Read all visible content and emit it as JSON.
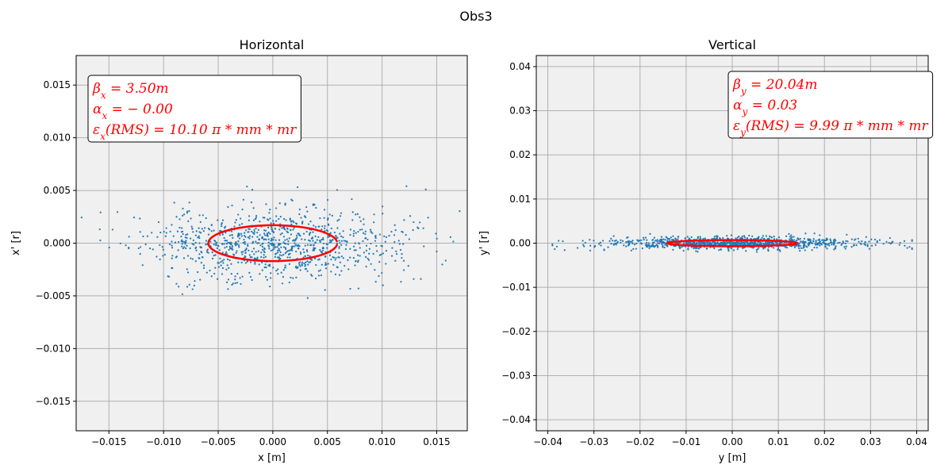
{
  "figure": {
    "suptitle": "Obs3"
  },
  "colors": {
    "points": "#1f77b4",
    "ellipse": "#ff0000",
    "axes_bg": "#f0f0f0",
    "grid": "#b0b0b0"
  },
  "chart_data": [
    {
      "type": "scatter",
      "title": "Horizontal",
      "xlabel": "x [m]",
      "ylabel": "x' [r]",
      "xlim": [
        -0.018,
        0.0178
      ],
      "ylim": [
        -0.0178,
        0.0178
      ],
      "xticks": [
        -0.015,
        -0.01,
        -0.005,
        0.0,
        0.005,
        0.01,
        0.015
      ],
      "xtick_labels": [
        "−0.015",
        "−0.010",
        "−0.005",
        "0.000",
        "0.005",
        "0.010",
        "0.015"
      ],
      "yticks": [
        -0.015,
        -0.01,
        -0.005,
        0.0,
        0.005,
        0.01,
        0.015
      ],
      "ytick_labels": [
        "−0.015",
        "−0.010",
        "−0.005",
        "0.000",
        "0.005",
        "0.010",
        "0.015"
      ],
      "grid": true,
      "particles": {
        "count": 1000,
        "sigma_pos": 0.0059,
        "sigma_angle": 0.0017,
        "pos_range": [
          -0.0175,
          0.0175
        ],
        "angle_range": [
          -0.0052,
          0.0054
        ],
        "seed": 11
      },
      "ellipse": {
        "beta": 3.5,
        "alpha": 0.0,
        "emittance": 1.01e-05,
        "x_range": [
          -0.0059,
          0.0059
        ],
        "y_range": [
          -0.0017,
          0.0017
        ]
      },
      "annotation": {
        "placement": "top-left",
        "lines": [
          "βx = 3.50m",
          "αx = − 0.00",
          "εx(RMS) = 10.10 π * mm * mr"
        ]
      }
    },
    {
      "type": "scatter",
      "title": "Vertical",
      "xlabel": "y [m]",
      "ylabel": "y' [r]",
      "xlim": [
        -0.0425,
        0.0425
      ],
      "ylim": [
        -0.0425,
        0.0425
      ],
      "xticks": [
        -0.04,
        -0.03,
        -0.02,
        -0.01,
        0.0,
        0.01,
        0.02,
        0.03,
        0.04
      ],
      "xtick_labels": [
        "−0.04",
        "−0.03",
        "−0.02",
        "−0.01",
        "0.00",
        "0.01",
        "0.02",
        "0.03",
        "0.04"
      ],
      "yticks": [
        -0.04,
        -0.03,
        -0.02,
        -0.01,
        0.0,
        0.01,
        0.02,
        0.03,
        0.04
      ],
      "ytick_labels": [
        "−0.04",
        "−0.03",
        "−0.02",
        "−0.01",
        "0.00",
        "0.01",
        "0.02",
        "0.03",
        "0.04"
      ],
      "grid": true,
      "particles": {
        "count": 1000,
        "sigma_pos": 0.0141,
        "sigma_angle": 0.0007,
        "pos_range": [
          -0.039,
          0.039
        ],
        "angle_range": [
          -0.0022,
          0.0022
        ],
        "seed": 23
      },
      "ellipse": {
        "beta": 20.04,
        "alpha": 0.03,
        "emittance": 9.99e-06,
        "x_range": [
          -0.0141,
          0.0141
        ],
        "y_range": [
          -0.0007,
          0.0007
        ]
      },
      "annotation": {
        "placement": "top-right",
        "lines": [
          "βy = 20.04m",
          "αy = 0.03",
          "εy(RMS) = 9.99 π * mm * mr"
        ]
      }
    }
  ]
}
